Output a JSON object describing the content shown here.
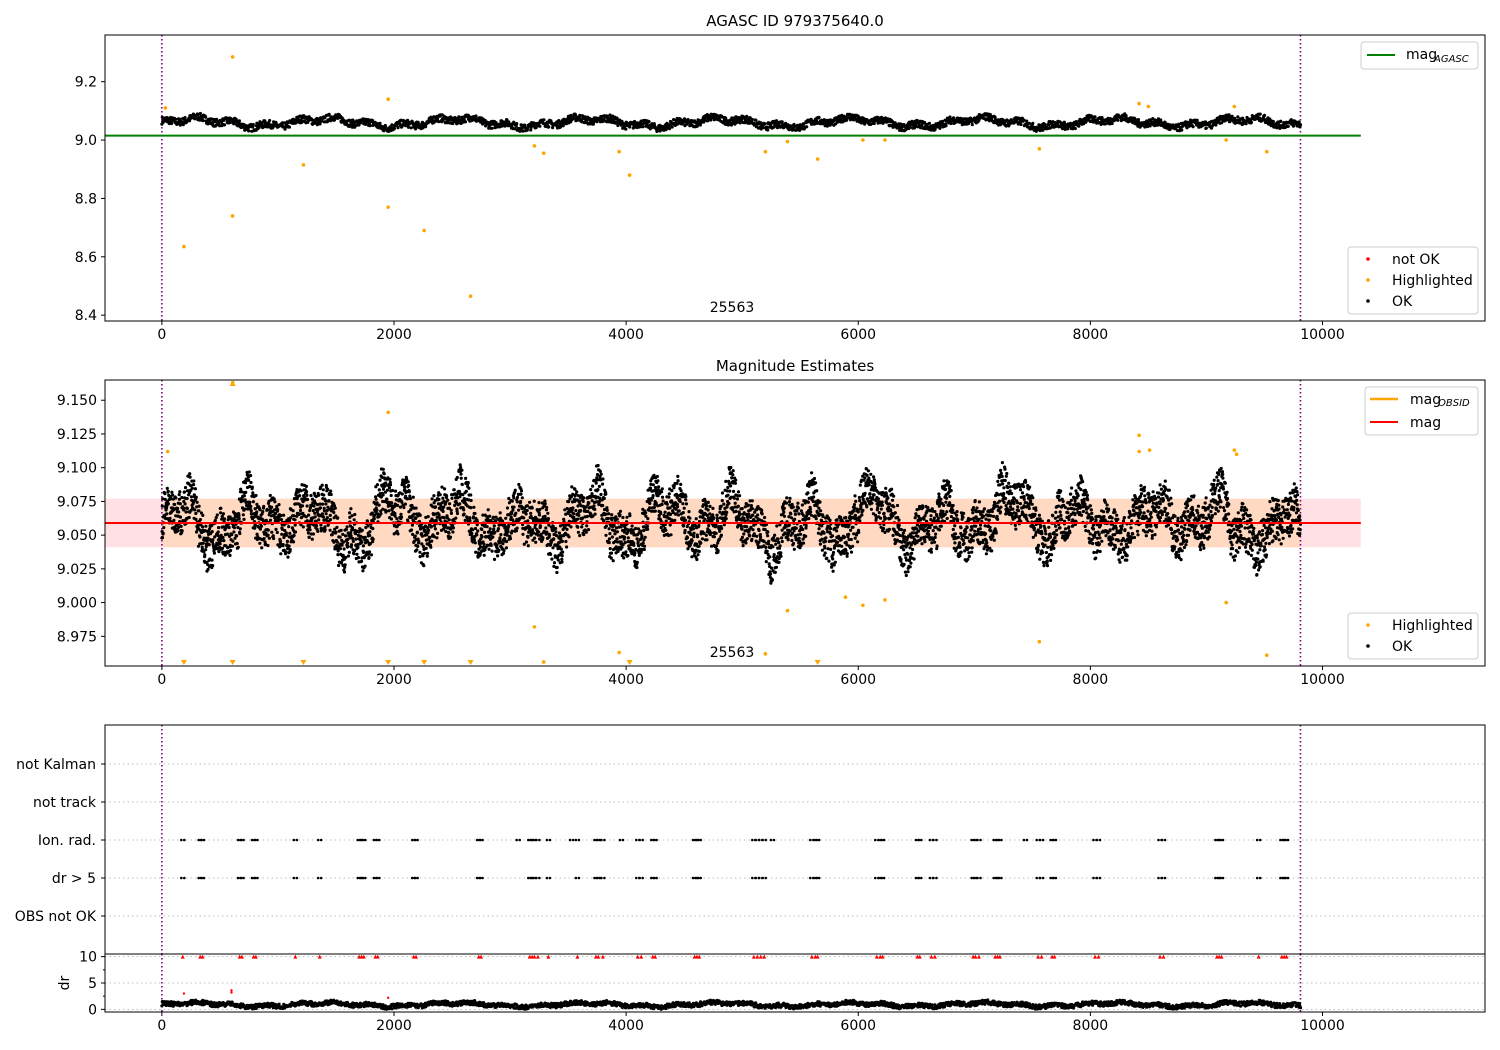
{
  "chart_data": [
    {
      "type": "scatter",
      "title": "AGASC ID 979375640.0",
      "xlabel": "",
      "ylabel": "",
      "xlim": [
        -490,
        11400
      ],
      "ylim": [
        8.38,
        9.36
      ],
      "xticks": [
        0,
        2000,
        4000,
        6000,
        8000,
        10000
      ],
      "yticks": [
        8.4,
        8.6,
        8.8,
        9.0,
        9.2
      ],
      "ytick_labels": [
        "8.4",
        "8.6",
        "8.8",
        "9.0",
        "9.2"
      ],
      "annotation": "25563",
      "vlines": [
        0,
        9810
      ],
      "grid": false,
      "hline": {
        "name": "mag",
        "sub": "AGASC",
        "y": 9.015,
        "x_range": [
          -490,
          10330
        ],
        "color": "#008000"
      },
      "legend_top": "top-right",
      "legend_bottom": "bottom-right",
      "legend_labels": [
        "not OK",
        "Highlighted",
        "OK"
      ],
      "colors": {
        "not_ok": "#ff0000",
        "highlighted": "#ffa500",
        "ok": "#000000",
        "vline": "#800080"
      },
      "ok_band": {
        "x_range": [
          0,
          9810
        ],
        "center": 9.06,
        "amplitude": 0.025
      },
      "highlighted": [
        {
          "x": 30,
          "y": 9.11
        },
        {
          "x": 190,
          "y": 8.635
        },
        {
          "x": 610,
          "y": 9.285
        },
        {
          "x": 610,
          "y": 8.74
        },
        {
          "x": 1220,
          "y": 8.915
        },
        {
          "x": 1950,
          "y": 9.14
        },
        {
          "x": 1950,
          "y": 8.77
        },
        {
          "x": 2260,
          "y": 8.69
        },
        {
          "x": 2660,
          "y": 8.465
        },
        {
          "x": 3210,
          "y": 8.98
        },
        {
          "x": 3290,
          "y": 8.955
        },
        {
          "x": 3940,
          "y": 8.96
        },
        {
          "x": 4030,
          "y": 8.88
        },
        {
          "x": 5200,
          "y": 8.96
        },
        {
          "x": 5390,
          "y": 8.995
        },
        {
          "x": 5650,
          "y": 8.935
        },
        {
          "x": 6040,
          "y": 9.0
        },
        {
          "x": 6230,
          "y": 9.0
        },
        {
          "x": 7560,
          "y": 8.97
        },
        {
          "x": 8420,
          "y": 9.125
        },
        {
          "x": 8500,
          "y": 9.115
        },
        {
          "x": 9170,
          "y": 9.0
        },
        {
          "x": 9240,
          "y": 9.115
        },
        {
          "x": 9520,
          "y": 8.96
        }
      ]
    },
    {
      "type": "scatter",
      "title": "Magnitude Estimates",
      "xlabel": "",
      "ylabel": "",
      "xlim": [
        -490,
        11400
      ],
      "ylim": [
        8.953,
        9.165
      ],
      "xticks": [
        0,
        2000,
        4000,
        6000,
        8000,
        10000
      ],
      "yticks": [
        8.975,
        9.0,
        9.025,
        9.05,
        9.075,
        9.1,
        9.125,
        9.15
      ],
      "ytick_labels": [
        "8.975",
        "9.000",
        "9.025",
        "9.050",
        "9.075",
        "9.100",
        "9.125",
        "9.150"
      ],
      "annotation": "25563",
      "vlines": [
        0,
        9810
      ],
      "grid": false,
      "mag_line": {
        "name": "mag",
        "y": 9.059,
        "x_range": [
          -490,
          10330
        ],
        "color": "#ff0000"
      },
      "band": {
        "y_range": [
          9.041,
          9.077
        ],
        "x_range": [
          -490,
          10330
        ]
      },
      "inner_band": {
        "y_range": [
          9.041,
          9.077
        ],
        "x_range": [
          0,
          9810
        ]
      },
      "mag_obsid_legend": {
        "name": "mag",
        "sub": "OBSID",
        "color": "#ffa500"
      },
      "legend_top": "top-right",
      "legend_bottom": "bottom-right",
      "legend_labels": [
        "Highlighted",
        "OK"
      ],
      "highlighted": [
        {
          "x": 50,
          "y": 9.112
        },
        {
          "x": 610,
          "y": 9.163
        },
        {
          "x": 1950,
          "y": 9.141
        },
        {
          "x": 3210,
          "y": 8.982
        },
        {
          "x": 3290,
          "y": 8.956
        },
        {
          "x": 3940,
          "y": 8.963
        },
        {
          "x": 5200,
          "y": 8.962
        },
        {
          "x": 5390,
          "y": 8.994
        },
        {
          "x": 5890,
          "y": 9.004
        },
        {
          "x": 6040,
          "y": 8.998
        },
        {
          "x": 6230,
          "y": 9.002
        },
        {
          "x": 7560,
          "y": 8.971
        },
        {
          "x": 8420,
          "y": 9.124
        },
        {
          "x": 8420,
          "y": 9.112
        },
        {
          "x": 8510,
          "y": 9.113
        },
        {
          "x": 9170,
          "y": 9.0
        },
        {
          "x": 9240,
          "y": 9.113
        },
        {
          "x": 9260,
          "y": 9.11
        },
        {
          "x": 9520,
          "y": 8.961
        }
      ],
      "out_of_range_markers": [
        190,
        610,
        1220,
        1950,
        2260,
        2660,
        4030,
        5650
      ]
    },
    {
      "type": "scatter",
      "title": "",
      "xlabel": "",
      "ylabel": "",
      "xlim": [
        -490,
        11400
      ],
      "categories": [
        "not Kalman",
        "not track",
        "Ion. rad.",
        "dr > 5",
        "OBS not OK"
      ],
      "vlines": [
        0,
        9810
      ],
      "grid": true,
      "ion_rad_x": [
        180,
        330,
        350,
        670,
        690,
        790,
        810,
        1150,
        1360,
        1700,
        1720,
        1740,
        1840,
        1860,
        2170,
        2190,
        2730,
        2750,
        3070,
        3170,
        3190,
        3210,
        3240,
        3330,
        3530,
        3580,
        3740,
        3760,
        3800,
        3960,
        4100,
        4130,
        4230,
        4250,
        4590,
        4610,
        4630,
        5100,
        5130,
        5160,
        5190,
        5260,
        5600,
        5630,
        5650,
        6160,
        6190,
        6210,
        6510,
        6530,
        6630,
        6660,
        6990,
        7010,
        7040,
        7180,
        7200,
        7220,
        7440,
        7550,
        7580,
        7670,
        7690,
        8040,
        8070,
        8600,
        8630,
        9090,
        9110,
        9130,
        9450,
        9650,
        9670,
        9690
      ],
      "dr5_x": [
        180,
        330,
        350,
        670,
        690,
        790,
        810,
        1150,
        1360,
        1700,
        1720,
        1740,
        1840,
        1860,
        2170,
        2190,
        2730,
        2750,
        3170,
        3190,
        3210,
        3240,
        3330,
        3580,
        3740,
        3760,
        3800,
        4100,
        4130,
        4230,
        4250,
        4590,
        4610,
        4630,
        5100,
        5130,
        5160,
        5190,
        5600,
        5630,
        5650,
        6160,
        6190,
        6210,
        6510,
        6530,
        6630,
        6660,
        6990,
        7010,
        7040,
        7180,
        7200,
        7220,
        7550,
        7580,
        7670,
        7690,
        8040,
        8070,
        8600,
        8630,
        9090,
        9110,
        9130,
        9450,
        9650,
        9670,
        9690
      ]
    },
    {
      "type": "scatter",
      "title": "",
      "xlabel": "",
      "ylabel": "dr",
      "xlim": [
        -490,
        11400
      ],
      "ylim": [
        -0.5,
        10.5
      ],
      "xticks": [
        0,
        2000,
        4000,
        6000,
        8000,
        10000
      ],
      "yticks": [
        0,
        5,
        10
      ],
      "ytick_labels": [
        "0",
        "5",
        "10"
      ],
      "vlines": [
        0,
        9810
      ],
      "grid": true,
      "clipped_markers_y": 10,
      "red_points": [
        {
          "x": 190,
          "y": 3.0
        },
        {
          "x": 600,
          "y": 3.2
        },
        {
          "x": 600,
          "y": 3.6
        },
        {
          "x": 1950,
          "y": 2.2
        }
      ],
      "ok_band": {
        "x_range": [
          0,
          9810
        ],
        "center": 0.9,
        "amplitude": 0.6
      }
    }
  ]
}
